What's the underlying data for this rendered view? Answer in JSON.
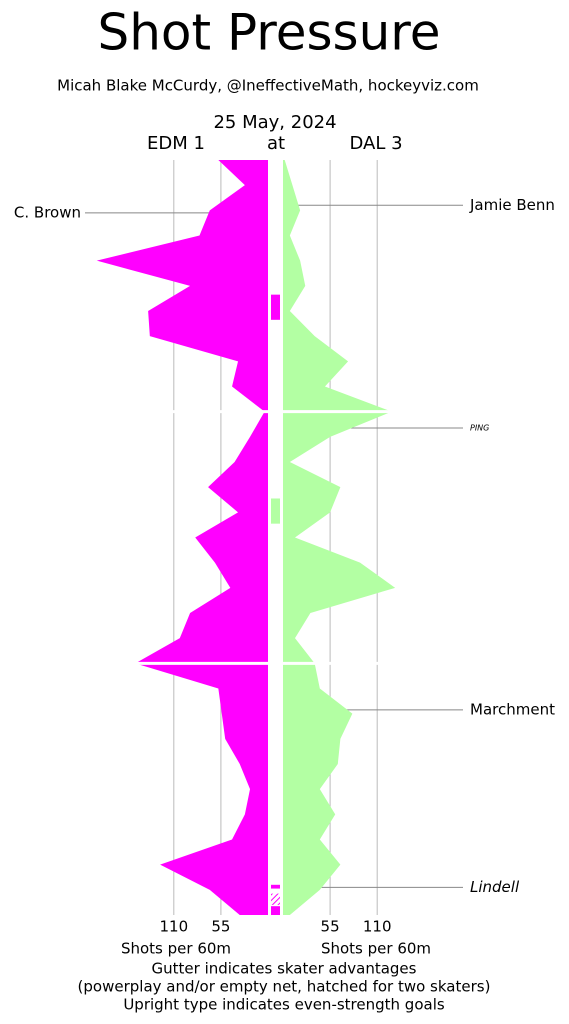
{
  "chart_data": {
    "type": "shot-pressure",
    "title": "Shot Pressure",
    "subtitle": "Micah Blake McCurdy, @IneffectiveMath, hockeyviz.com",
    "date": "25 May, 2024",
    "away": "EDM 1",
    "separator": "at",
    "home": "DAL 3",
    "x_label_left": "Shots per 60m",
    "x_label_right": "Shots per 60m",
    "notes": [
      "Gutter indicates skater advantages",
      "(powerplay and/or empty net, hatched for two skaters)",
      "Upright type indicates even-strength goals"
    ],
    "x": [
      0,
      2,
      4,
      6,
      8,
      10,
      12,
      14,
      16,
      18,
      20,
      22,
      24,
      26,
      28,
      30,
      32,
      34,
      36,
      38,
      40,
      42,
      44,
      46,
      48,
      50,
      52,
      54,
      56,
      58,
      60
    ],
    "tlim": [
      0,
      60
    ],
    "period_breaks": [
      20,
      40
    ],
    "vlim": [
      0,
      160
    ],
    "ticks_left": [
      110,
      55
    ],
    "ticks_right": [
      55,
      110
    ],
    "grid": true,
    "series": [
      {
        "name": "EDM",
        "side": "left",
        "color": "#ff00ff",
        "values": [
          58,
          27,
          68,
          80,
          200,
          91,
          140,
          138,
          35,
          42,
          4,
          21,
          39,
          70,
          35,
          85,
          62,
          44,
          91,
          103,
          155,
          58,
          54,
          50,
          33,
          21,
          27,
          42,
          126,
          68,
          33
        ]
      },
      {
        "name": "DAL",
        "side": "right",
        "color": "#b3ffa3",
        "values": [
          2,
          11,
          20,
          8,
          20,
          26,
          8,
          37,
          76,
          49,
          127,
          55,
          8,
          67,
          55,
          14,
          90,
          131,
          32,
          14,
          37,
          43,
          81,
          67,
          64,
          43,
          61,
          43,
          67,
          43,
          8
        ]
      }
    ],
    "gutter": [
      {
        "start": 10.7,
        "end": 12.7,
        "color": "#ff00ff",
        "hatched": false
      },
      {
        "start": 26.9,
        "end": 28.9,
        "color": "#b3ffa3",
        "hatched": false
      },
      {
        "start": 57.6,
        "end": 57.9,
        "color": "#ff00ff",
        "hatched": false
      },
      {
        "start": 58.3,
        "end": 59.2,
        "color": "#ff00ff",
        "hatched": true
      },
      {
        "start": 59.3,
        "end": 60,
        "color": "#ff00ff",
        "hatched": false
      }
    ],
    "goals": [
      {
        "name": "C. Brown",
        "time": 4.2,
        "side": "left",
        "italic": false,
        "small": false
      },
      {
        "name": "Jamie Benn",
        "time": 3.6,
        "side": "right",
        "italic": false,
        "small": false
      },
      {
        "name": "PING",
        "time": 21.3,
        "side": "right",
        "italic": true,
        "small": true
      },
      {
        "name": "Marchment",
        "time": 43.7,
        "side": "right",
        "italic": false,
        "small": false
      },
      {
        "name": "Lindell",
        "time": 57.8,
        "side": "right",
        "italic": true,
        "small": false
      }
    ]
  }
}
